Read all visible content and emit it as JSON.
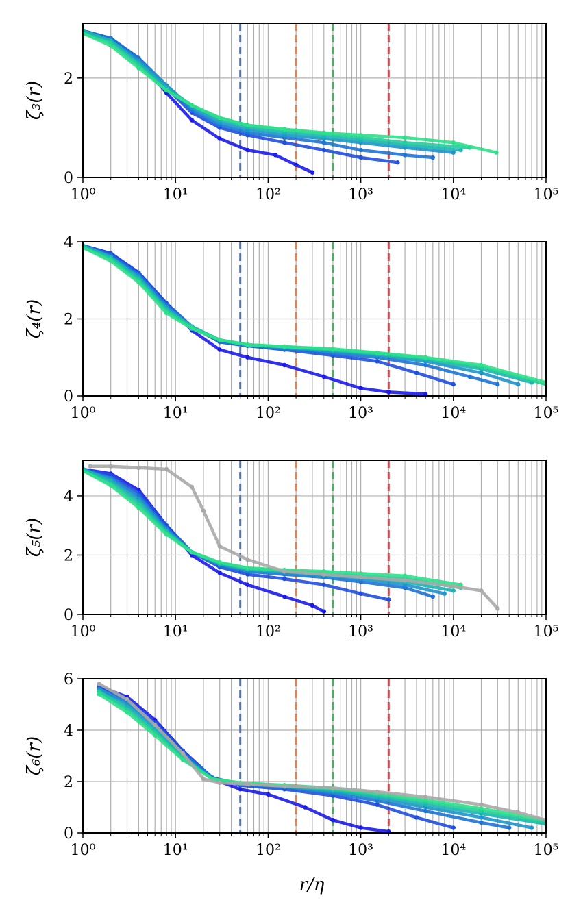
{
  "figure": {
    "xlabel": "r/η",
    "x_tick_labels": [
      "10⁰",
      "10¹",
      "10²",
      "10³",
      "10⁴",
      "10⁵"
    ],
    "reference_lines": [
      {
        "x": 50,
        "color": "#4c72b0"
      },
      {
        "x": 200,
        "color": "#dd8452"
      },
      {
        "x": 500,
        "color": "#55a868"
      },
      {
        "x": 2000,
        "color": "#c44e52"
      }
    ],
    "colors": {
      "series": [
        "#1a1aeb",
        "#1f4fe0",
        "#1e73d6",
        "#1e94cc",
        "#1cb4b4",
        "#22cc9b",
        "#2fe08a"
      ],
      "gray": "#a9a9a9",
      "grid": "#b0b0b0"
    }
  },
  "chart_data": [
    {
      "type": "line",
      "ylabel": "ζ₃(r)",
      "xscale": "log",
      "xlim": [
        1,
        100000
      ],
      "ylim": [
        0,
        3.1
      ],
      "y_ticks": [
        0,
        2
      ],
      "y_tick_labels": [
        "0",
        "2"
      ],
      "grid": true,
      "series": [
        {
          "name": "series-1",
          "x": [
            1,
            2,
            4,
            8,
            15,
            30,
            60,
            120,
            200,
            300
          ],
          "values": [
            2.95,
            2.8,
            2.35,
            1.7,
            1.15,
            0.78,
            0.55,
            0.45,
            0.25,
            0.1
          ]
        },
        {
          "name": "series-2",
          "x": [
            1,
            2,
            4,
            8,
            15,
            30,
            60,
            150,
            400,
            1000,
            2500
          ],
          "values": [
            2.95,
            2.8,
            2.4,
            1.8,
            1.3,
            1.0,
            0.85,
            0.7,
            0.55,
            0.4,
            0.3
          ]
        },
        {
          "name": "series-3",
          "x": [
            1,
            2,
            4,
            8,
            15,
            30,
            60,
            150,
            400,
            1000,
            3000,
            6000
          ],
          "values": [
            2.95,
            2.8,
            2.4,
            1.85,
            1.35,
            1.05,
            0.9,
            0.8,
            0.7,
            0.55,
            0.45,
            0.4
          ]
        },
        {
          "name": "series-4",
          "x": [
            1,
            2,
            4,
            8,
            15,
            30,
            60,
            150,
            400,
            1000,
            3000,
            10000
          ],
          "values": [
            2.95,
            2.75,
            2.35,
            1.85,
            1.4,
            1.1,
            0.95,
            0.85,
            0.78,
            0.7,
            0.6,
            0.5
          ]
        },
        {
          "name": "series-5",
          "x": [
            1,
            2,
            4,
            8,
            15,
            30,
            60,
            150,
            400,
            1000,
            3000,
            12000
          ],
          "values": [
            2.95,
            2.75,
            2.3,
            1.8,
            1.45,
            1.15,
            1.0,
            0.9,
            0.82,
            0.75,
            0.65,
            0.55
          ]
        },
        {
          "name": "series-6",
          "x": [
            1,
            2,
            4,
            8,
            15,
            30,
            60,
            150,
            400,
            1000,
            3000,
            15000
          ],
          "values": [
            2.9,
            2.7,
            2.25,
            1.75,
            1.45,
            1.2,
            1.05,
            0.95,
            0.88,
            0.8,
            0.7,
            0.6
          ]
        },
        {
          "name": "series-7",
          "x": [
            1,
            2,
            4,
            8,
            15,
            30,
            60,
            150,
            400,
            1000,
            3000,
            10000,
            29000
          ],
          "values": [
            2.9,
            2.65,
            2.2,
            1.75,
            1.45,
            1.2,
            1.05,
            0.97,
            0.9,
            0.85,
            0.8,
            0.7,
            0.5
          ]
        }
      ]
    },
    {
      "type": "line",
      "ylabel": "ζ₄(r)",
      "xscale": "log",
      "xlim": [
        1,
        100000
      ],
      "ylim": [
        0,
        4
      ],
      "y_ticks": [
        0,
        2,
        4
      ],
      "y_tick_labels": [
        "0",
        "2",
        "4"
      ],
      "grid": true,
      "series": [
        {
          "name": "series-1",
          "x": [
            1,
            2,
            4,
            8,
            15,
            30,
            60,
            150,
            400,
            1000,
            2000,
            5000
          ],
          "values": [
            3.9,
            3.7,
            3.2,
            2.4,
            1.7,
            1.2,
            1.0,
            0.8,
            0.5,
            0.2,
            0.1,
            0.05
          ]
        },
        {
          "name": "series-2",
          "x": [
            1,
            2,
            4,
            8,
            15,
            30,
            60,
            150,
            500,
            1500,
            4000,
            10000
          ],
          "values": [
            3.9,
            3.7,
            3.2,
            2.4,
            1.8,
            1.4,
            1.3,
            1.2,
            1.05,
            0.9,
            0.6,
            0.3
          ]
        },
        {
          "name": "series-3",
          "x": [
            1,
            2,
            4,
            8,
            15,
            30,
            60,
            150,
            500,
            1500,
            5000,
            15000,
            30000
          ],
          "values": [
            3.9,
            3.65,
            3.15,
            2.35,
            1.8,
            1.4,
            1.3,
            1.22,
            1.1,
            1.0,
            0.8,
            0.5,
            0.3
          ]
        },
        {
          "name": "series-4",
          "x": [
            1,
            2,
            4,
            8,
            15,
            30,
            60,
            150,
            500,
            1500,
            5000,
            20000,
            50000
          ],
          "values": [
            3.9,
            3.6,
            3.1,
            2.3,
            1.8,
            1.45,
            1.32,
            1.25,
            1.15,
            1.05,
            0.9,
            0.6,
            0.3
          ]
        },
        {
          "name": "series-5",
          "x": [
            1,
            2,
            4,
            8,
            15,
            30,
            60,
            150,
            500,
            1500,
            5000,
            20000,
            70000
          ],
          "values": [
            3.9,
            3.6,
            3.05,
            2.25,
            1.8,
            1.45,
            1.33,
            1.27,
            1.18,
            1.08,
            0.95,
            0.7,
            0.35
          ]
        },
        {
          "name": "series-6",
          "x": [
            1,
            2,
            4,
            8,
            15,
            30,
            60,
            150,
            500,
            1500,
            5000,
            20000,
            100000
          ],
          "values": [
            3.85,
            3.55,
            3.0,
            2.2,
            1.78,
            1.45,
            1.33,
            1.28,
            1.2,
            1.1,
            0.98,
            0.75,
            0.3
          ]
        },
        {
          "name": "series-7",
          "x": [
            1,
            2,
            4,
            8,
            15,
            30,
            60,
            150,
            500,
            1500,
            5000,
            20000,
            100000
          ],
          "values": [
            3.85,
            3.5,
            2.95,
            2.15,
            1.75,
            1.45,
            1.33,
            1.28,
            1.22,
            1.12,
            1.0,
            0.8,
            0.35
          ]
        }
      ]
    },
    {
      "type": "line",
      "ylabel": "ζ₅(r)",
      "xscale": "log",
      "xlim": [
        1,
        100000
      ],
      "ylim": [
        0,
        5.2
      ],
      "y_ticks": [
        0,
        2,
        4
      ],
      "y_tick_labels": [
        "0",
        "2",
        "4"
      ],
      "grid": true,
      "series": [
        {
          "name": "series-1",
          "x": [
            1,
            2,
            4,
            8,
            15,
            30,
            60,
            150,
            300,
            400
          ],
          "values": [
            4.9,
            4.75,
            4.2,
            3.0,
            2.0,
            1.4,
            1.0,
            0.6,
            0.3,
            0.1
          ]
        },
        {
          "name": "series-2",
          "x": [
            1,
            2,
            4,
            8,
            15,
            30,
            60,
            150,
            400,
            1000,
            2000
          ],
          "values": [
            4.9,
            4.7,
            4.1,
            3.0,
            2.1,
            1.6,
            1.35,
            1.2,
            1.0,
            0.7,
            0.5
          ]
        },
        {
          "name": "series-3",
          "x": [
            1,
            2,
            4,
            8,
            15,
            30,
            60,
            150,
            400,
            1000,
            3000,
            6000
          ],
          "values": [
            4.9,
            4.6,
            4.0,
            2.9,
            2.1,
            1.65,
            1.45,
            1.35,
            1.25,
            1.1,
            0.9,
            0.6
          ]
        },
        {
          "name": "series-4",
          "x": [
            1,
            2,
            4,
            8,
            15,
            30,
            60,
            150,
            400,
            1000,
            3000,
            8000
          ],
          "values": [
            4.9,
            4.55,
            3.9,
            2.85,
            2.1,
            1.7,
            1.5,
            1.4,
            1.3,
            1.2,
            1.0,
            0.7
          ]
        },
        {
          "name": "series-5",
          "x": [
            1,
            2,
            4,
            8,
            15,
            30,
            60,
            150,
            400,
            1000,
            3000,
            10000
          ],
          "values": [
            4.9,
            4.5,
            3.8,
            2.8,
            2.1,
            1.7,
            1.52,
            1.45,
            1.35,
            1.25,
            1.1,
            0.8
          ]
        },
        {
          "name": "series-6",
          "x": [
            1,
            2,
            4,
            8,
            15,
            30,
            60,
            150,
            400,
            1000,
            3000,
            12000
          ],
          "values": [
            4.85,
            4.4,
            3.7,
            2.75,
            2.1,
            1.75,
            1.55,
            1.48,
            1.4,
            1.3,
            1.2,
            0.9
          ]
        },
        {
          "name": "series-7",
          "x": [
            1,
            2,
            4,
            8,
            15,
            30,
            60,
            150,
            400,
            1000,
            3000,
            12000
          ],
          "values": [
            4.85,
            4.35,
            3.6,
            2.7,
            2.1,
            1.75,
            1.57,
            1.5,
            1.45,
            1.38,
            1.3,
            1.0
          ]
        },
        {
          "name": "gray",
          "x": [
            1.2,
            2,
            4,
            8,
            15,
            20,
            30,
            60,
            150,
            400,
            1000,
            3000,
            10000,
            20000,
            30000
          ],
          "values": [
            5.0,
            5.0,
            4.95,
            4.9,
            4.3,
            3.5,
            2.3,
            1.85,
            1.45,
            1.35,
            1.25,
            1.15,
            0.95,
            0.8,
            0.2
          ]
        }
      ]
    },
    {
      "type": "line",
      "ylabel": "ζ₆(r)",
      "xscale": "log",
      "xlim": [
        1,
        100000
      ],
      "ylim": [
        0,
        6
      ],
      "y_ticks": [
        0,
        2,
        4,
        6
      ],
      "y_tick_labels": [
        "0",
        "2",
        "4",
        "6"
      ],
      "grid": true,
      "series": [
        {
          "name": "series-1",
          "x": [
            1.5,
            3,
            6,
            12,
            25,
            50,
            100,
            250,
            500,
            1000,
            2000
          ],
          "values": [
            5.7,
            5.3,
            4.4,
            3.2,
            2.1,
            1.7,
            1.5,
            1.0,
            0.5,
            0.2,
            0.05
          ]
        },
        {
          "name": "series-2",
          "x": [
            1.5,
            3,
            6,
            12,
            25,
            50,
            150,
            500,
            1500,
            4000,
            10000
          ],
          "values": [
            5.7,
            5.2,
            4.3,
            3.2,
            2.15,
            1.85,
            1.7,
            1.45,
            1.1,
            0.6,
            0.2
          ]
        },
        {
          "name": "series-3",
          "x": [
            1.5,
            3,
            6,
            12,
            25,
            50,
            150,
            500,
            1500,
            5000,
            20000,
            40000
          ],
          "values": [
            5.6,
            5.1,
            4.2,
            3.1,
            2.15,
            1.9,
            1.78,
            1.55,
            1.25,
            0.85,
            0.4,
            0.2
          ]
        },
        {
          "name": "series-4",
          "x": [
            1.5,
            3,
            6,
            12,
            25,
            50,
            150,
            500,
            1500,
            5000,
            20000,
            70000
          ],
          "values": [
            5.6,
            5.0,
            4.1,
            3.0,
            2.1,
            1.92,
            1.8,
            1.6,
            1.35,
            1.0,
            0.6,
            0.2
          ]
        },
        {
          "name": "series-5",
          "x": [
            1.5,
            3,
            6,
            12,
            25,
            50,
            150,
            500,
            1500,
            5000,
            20000,
            100000
          ],
          "values": [
            5.5,
            4.9,
            4.0,
            2.95,
            2.1,
            1.93,
            1.82,
            1.65,
            1.42,
            1.1,
            0.75,
            0.35
          ]
        },
        {
          "name": "series-6",
          "x": [
            1.5,
            3,
            6,
            12,
            25,
            50,
            150,
            500,
            1500,
            5000,
            20000,
            100000
          ],
          "values": [
            5.5,
            4.8,
            3.9,
            2.9,
            2.1,
            1.94,
            1.84,
            1.7,
            1.5,
            1.2,
            0.85,
            0.4
          ]
        },
        {
          "name": "series-7",
          "x": [
            1.5,
            3,
            6,
            12,
            25,
            50,
            150,
            500,
            1500,
            5000,
            20000,
            100000
          ],
          "values": [
            5.4,
            4.7,
            3.8,
            2.85,
            2.1,
            1.95,
            1.86,
            1.74,
            1.55,
            1.28,
            0.95,
            0.5
          ]
        },
        {
          "name": "gray",
          "x": [
            1.5,
            3,
            6,
            12,
            20,
            30,
            60,
            150,
            500,
            1500,
            5000,
            20000,
            50000,
            100000
          ],
          "values": [
            5.8,
            5.2,
            4.2,
            3.1,
            2.1,
            1.95,
            1.9,
            1.82,
            1.75,
            1.6,
            1.4,
            1.1,
            0.8,
            0.5
          ]
        }
      ]
    }
  ]
}
